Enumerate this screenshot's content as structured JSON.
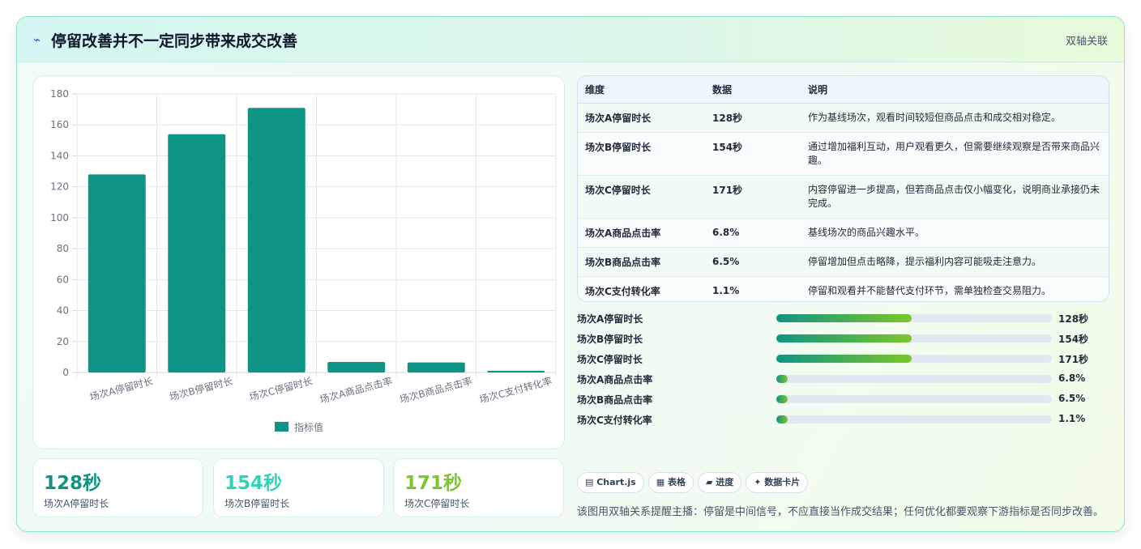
{
  "header": {
    "icon": "bolt-icon",
    "title": "停留改善并不一定同步带来成交改善",
    "tag": "双轴关联"
  },
  "chart_data": {
    "type": "bar",
    "categories": [
      "场次A停留时长",
      "场次B停留时长",
      "场次C停留时长",
      "场次A商品点击率",
      "场次B商品点击率",
      "场次C支付转化率"
    ],
    "series": [
      {
        "name": "指标值",
        "values": [
          128,
          154,
          171,
          6.8,
          6.5,
          1.1
        ]
      }
    ],
    "ylim": [
      0,
      180
    ],
    "yticks": [
      0,
      20,
      40,
      60,
      80,
      100,
      120,
      140,
      160,
      180
    ],
    "grid": true,
    "legend": "bottom",
    "color": "#0e9484"
  },
  "kpis": [
    {
      "value": "128秒",
      "label": "场次A停留时长",
      "color": "#0f9483"
    },
    {
      "value": "154秒",
      "label": "场次B停留时长",
      "color": "#2fd3b9"
    },
    {
      "value": "171秒",
      "label": "场次C停留时长",
      "color": "#7ac62d"
    }
  ],
  "table": {
    "headers": {
      "dimension": "维度",
      "data": "数据",
      "desc": "说明"
    },
    "rows": [
      {
        "dimension": "场次A停留时长",
        "data": "128秒",
        "desc": "作为基线场次，观看时间较短但商品点击和成交相对稳定。"
      },
      {
        "dimension": "场次B停留时长",
        "data": "154秒",
        "desc": "通过增加福利互动，用户观看更久，但需要继续观察是否带来商品兴趣。"
      },
      {
        "dimension": "场次C停留时长",
        "data": "171秒",
        "desc": "内容停留进一步提高，但若商品点击仅小幅变化，说明商业承接仍未完成。"
      },
      {
        "dimension": "场次A商品点击率",
        "data": "6.8%",
        "desc": "基线场次的商品兴趣水平。"
      },
      {
        "dimension": "场次B商品点击率",
        "data": "6.5%",
        "desc": "停留增加但点击略降，提示福利内容可能吸走注意力。"
      },
      {
        "dimension": "场次C支付转化率",
        "data": "1.1%",
        "desc": "停留和观看并不能替代支付环节，需单独检查交易阻力。"
      }
    ]
  },
  "progress": [
    {
      "label": "场次A停留时长",
      "value": "128秒",
      "fraction": 0.49
    },
    {
      "label": "场次B停留时长",
      "value": "154秒",
      "fraction": 0.49
    },
    {
      "label": "场次C停留时长",
      "value": "171秒",
      "fraction": 0.49
    },
    {
      "label": "场次A商品点击率",
      "value": "6.8%",
      "fraction": 0.04
    },
    {
      "label": "场次B商品点击率",
      "value": "6.5%",
      "fraction": 0.04
    },
    {
      "label": "场次C支付转化率",
      "value": "1.1%",
      "fraction": 0.04
    }
  ],
  "pills": [
    "▤ Chart.js",
    "▦ 表格",
    "▰ 进度",
    "✦ 数据卡片"
  ],
  "footer_note": "该图用双轴关系提醒主播：停留是中间信号，不应直接当作成交结果；任何优化都要观察下游指标是否同步改善。"
}
